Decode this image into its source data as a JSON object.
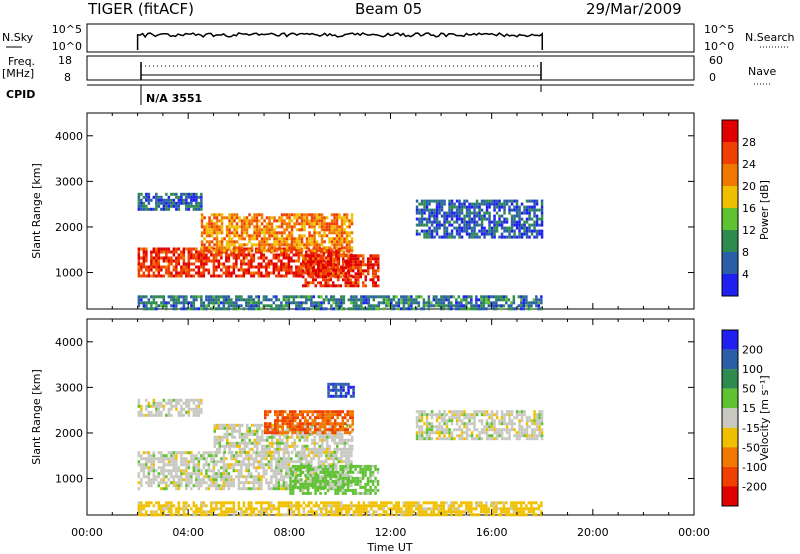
{
  "header": {
    "station": "TIGER (fitACF)",
    "beam": "Beam 05",
    "date": "29/Mar/2009"
  },
  "strip_panels": {
    "nsky": {
      "label": "N.Sky",
      "ticks": [
        "10^5",
        "10^0"
      ]
    },
    "nsearch": {
      "label": "N.Search",
      "ticks": [
        "10^5",
        "10^0"
      ]
    },
    "freq": {
      "label_line1": "Freq.",
      "label_line2": "[MHz]",
      "ticks": [
        "18",
        "8"
      ]
    },
    "nave": {
      "label": "Nave",
      "ticks": [
        "60",
        "0"
      ]
    },
    "cpid": {
      "label": "CPID",
      "value": "N/A 3551"
    }
  },
  "time_axis": {
    "label": "Time UT",
    "ticks": [
      "00:00",
      "04:00",
      "08:00",
      "12:00",
      "16:00",
      "20:00",
      "00:00"
    ]
  },
  "colorbars": {
    "power": {
      "label": "Power [dB]",
      "ticks": [
        "4",
        "8",
        "12",
        "16",
        "20",
        "24",
        "28"
      ],
      "colors": [
        "#1f1ff0",
        "#2a5fa8",
        "#2f8a4f",
        "#5ec232",
        "#f0c000",
        "#f07800",
        "#f04000",
        "#e00000"
      ]
    },
    "velocity": {
      "label": "Velocity [m s⁻¹]",
      "ticks": [
        "200",
        "100",
        "50",
        "15",
        "-15",
        "-50",
        "-100",
        "-200"
      ],
      "colors": [
        "#1f1ff0",
        "#2a5fa8",
        "#2f8a4f",
        "#5ec232",
        "#c8c8c0",
        "#f0c000",
        "#f07800",
        "#f04000",
        "#e00000"
      ]
    }
  },
  "chart_data": [
    {
      "type": "heatmap",
      "title": "Power",
      "xlabel": "Time UT",
      "ylabel": "Slant Range [km]",
      "y_ticks": [
        "1000",
        "2000",
        "3000",
        "4000"
      ],
      "xlim": [
        0,
        24
      ],
      "ylim": [
        200,
        4500
      ],
      "data_window": [
        2,
        18
      ],
      "regions": [
        {
          "t": [
            2.0,
            10.5
          ],
          "r": [
            900,
            1550
          ],
          "value": 28
        },
        {
          "t": [
            4.5,
            10.5
          ],
          "r": [
            1500,
            2300
          ],
          "value": 22
        },
        {
          "t": [
            8.5,
            11.5
          ],
          "r": [
            700,
            1400
          ],
          "value": 28
        },
        {
          "t": [
            2.0,
            4.5
          ],
          "r": [
            2400,
            2750
          ],
          "value": 6
        },
        {
          "t": [
            13.0,
            18.0
          ],
          "r": [
            1800,
            2600
          ],
          "value": 6
        },
        {
          "t": [
            2.0,
            18.0
          ],
          "r": [
            200,
            500
          ],
          "value": 8
        }
      ]
    },
    {
      "type": "heatmap",
      "title": "Velocity",
      "xlabel": "Time UT",
      "ylabel": "Slant Range [km]",
      "y_ticks": [
        "1000",
        "2000",
        "3000",
        "4000"
      ],
      "xlim": [
        0,
        24
      ],
      "ylim": [
        200,
        4500
      ],
      "data_window": [
        2,
        18
      ],
      "regions": [
        {
          "t": [
            2.0,
            10.5
          ],
          "r": [
            800,
            1600
          ],
          "value": 0
        },
        {
          "t": [
            5.0,
            10.5
          ],
          "r": [
            1600,
            2200
          ],
          "value": 0
        },
        {
          "t": [
            7.0,
            10.5
          ],
          "r": [
            2000,
            2500
          ],
          "value": -100
        },
        {
          "t": [
            9.5,
            10.5
          ],
          "r": [
            2800,
            3100
          ],
          "value": 200
        },
        {
          "t": [
            8.0,
            11.5
          ],
          "r": [
            700,
            1300
          ],
          "value": 30
        },
        {
          "t": [
            2.0,
            4.5
          ],
          "r": [
            2400,
            2750
          ],
          "value": 0
        },
        {
          "t": [
            13.0,
            18.0
          ],
          "r": [
            1900,
            2500
          ],
          "value": 0
        },
        {
          "t": [
            2.0,
            18.0
          ],
          "r": [
            200,
            500
          ],
          "value": -30
        }
      ]
    }
  ]
}
